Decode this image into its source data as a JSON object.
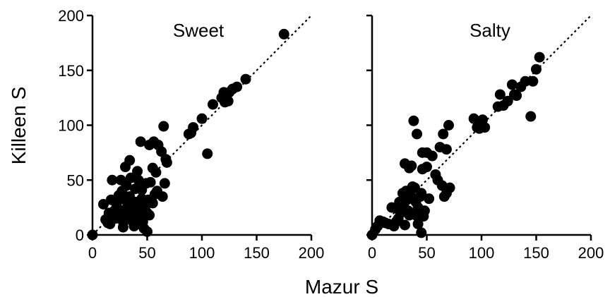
{
  "chart_data": {
    "type": "scatter",
    "xlabel": "Mazur S",
    "ylabel": "Killeen S",
    "xlim": [
      0,
      200
    ],
    "ylim": [
      0,
      200
    ],
    "ticks": [
      0,
      50,
      100,
      150,
      200
    ],
    "reference_line": "y = x (dotted)",
    "grid": false,
    "dot_color": "#000000",
    "panels": [
      {
        "title": "Sweet",
        "points": [
          [
            0,
            0
          ],
          [
            10,
            28
          ],
          [
            12,
            14
          ],
          [
            14,
            11
          ],
          [
            15,
            20
          ],
          [
            16,
            10
          ],
          [
            17,
            32
          ],
          [
            18,
            50
          ],
          [
            19,
            18
          ],
          [
            20,
            22
          ],
          [
            21,
            15
          ],
          [
            22,
            28
          ],
          [
            23,
            18
          ],
          [
            24,
            36
          ],
          [
            25,
            20
          ],
          [
            26,
            50
          ],
          [
            27,
            40
          ],
          [
            28,
            12
          ],
          [
            28,
            7
          ],
          [
            29,
            22
          ],
          [
            30,
            62
          ],
          [
            30,
            32
          ],
          [
            31,
            45
          ],
          [
            32,
            26
          ],
          [
            33,
            18
          ],
          [
            34,
            68
          ],
          [
            34,
            35
          ],
          [
            35,
            52
          ],
          [
            35,
            20
          ],
          [
            36,
            13
          ],
          [
            37,
            27
          ],
          [
            38,
            16
          ],
          [
            38,
            8
          ],
          [
            39,
            42
          ],
          [
            40,
            30
          ],
          [
            40,
            22
          ],
          [
            41,
            58
          ],
          [
            42,
            50
          ],
          [
            42,
            13
          ],
          [
            43,
            19
          ],
          [
            44,
            85
          ],
          [
            44,
            27
          ],
          [
            45,
            41
          ],
          [
            45,
            33
          ],
          [
            46,
            12
          ],
          [
            47,
            6
          ],
          [
            48,
            30
          ],
          [
            48,
            23
          ],
          [
            49,
            47
          ],
          [
            50,
            3
          ],
          [
            50,
            20
          ],
          [
            51,
            32
          ],
          [
            52,
            18
          ],
          [
            52,
            82
          ],
          [
            53,
            48
          ],
          [
            55,
            61
          ],
          [
            55,
            29
          ],
          [
            56,
            85
          ],
          [
            57,
            37
          ],
          [
            58,
            57
          ],
          [
            59,
            40
          ],
          [
            60,
            82
          ],
          [
            63,
            76
          ],
          [
            64,
            35
          ],
          [
            65,
            99
          ],
          [
            66,
            47
          ],
          [
            67,
            69
          ],
          [
            68,
            66
          ],
          [
            88,
            92
          ],
          [
            90,
            93
          ],
          [
            92,
            98
          ],
          [
            100,
            106
          ],
          [
            105,
            74
          ],
          [
            110,
            119
          ],
          [
            118,
            125
          ],
          [
            120,
            130
          ],
          [
            121,
            121
          ],
          [
            124,
            122
          ],
          [
            125,
            130
          ],
          [
            128,
            133
          ],
          [
            132,
            135
          ],
          [
            140,
            142
          ],
          [
            175,
            183
          ]
        ]
      },
      {
        "title": "Salty",
        "points": [
          [
            0,
            0
          ],
          [
            3,
            5
          ],
          [
            5,
            8
          ],
          [
            7,
            13
          ],
          [
            10,
            12
          ],
          [
            12,
            11
          ],
          [
            15,
            10
          ],
          [
            18,
            25
          ],
          [
            20,
            8
          ],
          [
            22,
            12
          ],
          [
            23,
            24
          ],
          [
            24,
            15
          ],
          [
            25,
            30
          ],
          [
            26,
            20
          ],
          [
            28,
            38
          ],
          [
            29,
            26
          ],
          [
            30,
            9
          ],
          [
            30,
            65
          ],
          [
            31,
            40
          ],
          [
            32,
            32
          ],
          [
            33,
            22
          ],
          [
            34,
            18
          ],
          [
            34,
            61
          ],
          [
            35,
            37
          ],
          [
            36,
            63
          ],
          [
            37,
            44
          ],
          [
            38,
            104
          ],
          [
            39,
            43
          ],
          [
            40,
            18
          ],
          [
            40,
            30
          ],
          [
            41,
            92
          ],
          [
            42,
            10
          ],
          [
            42,
            25
          ],
          [
            44,
            35
          ],
          [
            45,
            2
          ],
          [
            45,
            38
          ],
          [
            46,
            75
          ],
          [
            46,
            60
          ],
          [
            47,
            17
          ],
          [
            48,
            22
          ],
          [
            50,
            62
          ],
          [
            50,
            75
          ],
          [
            52,
            33
          ],
          [
            55,
            72
          ],
          [
            58,
            55
          ],
          [
            60,
            50
          ],
          [
            62,
            80
          ],
          [
            64,
            45
          ],
          [
            65,
            92
          ],
          [
            66,
            35
          ],
          [
            68,
            78
          ],
          [
            68,
            38
          ],
          [
            70,
            100
          ],
          [
            71,
            43
          ],
          [
            93,
            106
          ],
          [
            96,
            98
          ],
          [
            98,
            97
          ],
          [
            101,
            105
          ],
          [
            103,
            98
          ],
          [
            115,
            117
          ],
          [
            117,
            128
          ],
          [
            120,
            118
          ],
          [
            124,
            122
          ],
          [
            128,
            137
          ],
          [
            130,
            128
          ],
          [
            132,
            127
          ],
          [
            136,
            135
          ],
          [
            140,
            140
          ],
          [
            145,
            108
          ],
          [
            147,
            140
          ],
          [
            150,
            151
          ],
          [
            153,
            162
          ]
        ]
      }
    ]
  }
}
